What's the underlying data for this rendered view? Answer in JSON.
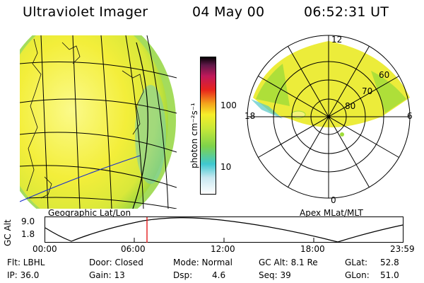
{
  "header": {
    "title": "Ultraviolet Imager",
    "date": "04 May 00",
    "time": "06:52:31  UT"
  },
  "colorbar": {
    "unit_label": "photon cm⁻²s⁻¹",
    "ticks": [
      "100",
      "10"
    ]
  },
  "geo_panel": {
    "caption": "Geographic Lat/Lon"
  },
  "polar_panel": {
    "caption": "Apex MLat/MLT",
    "mlt_labels": {
      "top": "12",
      "left": "18",
      "right": "6",
      "bottom": "0"
    },
    "lat_labels": [
      "60",
      "70",
      "80"
    ]
  },
  "altitude_plot": {
    "ylabel": "GC Alt",
    "ytick_top": "9.0",
    "ytick_bottom": "1.8",
    "xticks": [
      "00:00",
      "06:00",
      "12:00",
      "18:00",
      "23:59"
    ],
    "current_time_marker": "06:52:31"
  },
  "info": {
    "flt": "Flt: LBHL",
    "ip": "IP: 36.0",
    "door": "Door: Closed",
    "gain": "Gain: 13",
    "mode": "Mode: Normal",
    "dsp_label": "Dsp:",
    "dsp_value": "4.6",
    "gc_alt": "GC Alt: 8.1 Re",
    "seq": "Seq: 39",
    "glat_label": "GLat:",
    "glat_value": "52.8",
    "glon_label": "GLon:",
    "glon_value": "51.0"
  },
  "colors": {
    "marker": "#e41a1c",
    "coast": "#1a2fcc",
    "image_yellow": "#f5f230",
    "image_green": "#8ed23a"
  }
}
